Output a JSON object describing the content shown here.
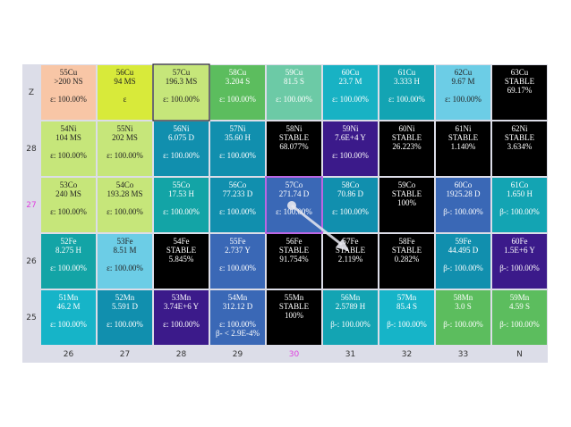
{
  "row_labels": [
    "Z",
    "28",
    "27",
    "26",
    "25"
  ],
  "column_labels": [
    "26",
    "27",
    "28",
    "29",
    "30",
    "31",
    "32",
    "33",
    "N"
  ],
  "rows": [
    [
      {
        "name": "55Cu",
        "half_life": ">200 NS",
        "decay": [
          "ε: 100.00%"
        ],
        "color": "#f8c6a6"
      },
      {
        "name": "56Cu",
        "half_life": "94 MS",
        "decay": [
          "ε"
        ],
        "color": "#d8ea3a"
      },
      {
        "name": "57Cu",
        "half_life": "196.3 MS",
        "decay": [
          "ε: 100.00%"
        ],
        "color": "#c6e67a"
      },
      {
        "name": "58Cu",
        "half_life": "3.204 S",
        "decay": [
          "ε: 100.00%"
        ],
        "color": "#5cbd5e"
      },
      {
        "name": "59Cu",
        "half_life": "81.5 S",
        "decay": [
          "ε: 100.00%"
        ],
        "color": "#6ccaa6"
      },
      {
        "name": "60Cu",
        "half_life": "23.7 M",
        "decay": [
          "ε: 100.00%"
        ],
        "color": "#18b2c4"
      },
      {
        "name": "61Cu",
        "half_life": "3.333 H",
        "decay": [
          "ε: 100.00%"
        ],
        "color": "#13a4b3"
      },
      {
        "name": "62Cu",
        "half_life": "9.67 M",
        "decay": [
          "ε: 100.00%"
        ],
        "color": "#6ccde6"
      },
      {
        "name": "63Cu",
        "half_life": "STABLE",
        "abundance": "69.17%",
        "color": "#000000"
      }
    ],
    [
      {
        "name": "54Ni",
        "half_life": "104 MS",
        "decay": [
          "ε: 100.00%"
        ],
        "color": "#c6e67a"
      },
      {
        "name": "55Ni",
        "half_life": "202 MS",
        "decay": [
          "ε: 100.00%"
        ],
        "color": "#c6e67a"
      },
      {
        "name": "56Ni",
        "half_life": "6.075 D",
        "decay": [
          "ε: 100.00%"
        ],
        "color": "#118fae"
      },
      {
        "name": "57Ni",
        "half_life": "35.60 H",
        "decay": [
          "ε: 100.00%"
        ],
        "color": "#118fae"
      },
      {
        "name": "58Ni",
        "half_life": "STABLE",
        "abundance": "68.077%",
        "color": "#000000"
      },
      {
        "name": "59Ni",
        "half_life": "7.6E+4 Y",
        "decay": [
          "ε: 100.00%"
        ],
        "color": "#3b1a8a"
      },
      {
        "name": "60Ni",
        "half_life": "STABLE",
        "abundance": "26.223%",
        "color": "#000000"
      },
      {
        "name": "61Ni",
        "half_life": "STABLE",
        "abundance": "1.140%",
        "color": "#000000"
      },
      {
        "name": "62Ni",
        "half_life": "STABLE",
        "abundance": "3.634%",
        "color": "#000000"
      }
    ],
    [
      {
        "name": "53Co",
        "half_life": "240 MS",
        "decay": [
          "ε: 100.00%"
        ],
        "color": "#c6e67a"
      },
      {
        "name": "54Co",
        "half_life": "193.28 MS",
        "decay": [
          "ε: 100.00%"
        ],
        "color": "#c6e67a"
      },
      {
        "name": "55Co",
        "half_life": "17.53 H",
        "decay": [
          "ε: 100.00%"
        ],
        "color": "#13a4a6"
      },
      {
        "name": "56Co",
        "half_life": "77.233 D",
        "decay": [
          "ε: 100.00%"
        ],
        "color": "#118fae"
      },
      {
        "name": "57Co",
        "half_life": "271.74 D",
        "decay": [
          "ε: 100.00%"
        ],
        "color": "#3a68b6"
      },
      {
        "name": "58Co",
        "half_life": "70.86 D",
        "decay": [
          "ε: 100.00%"
        ],
        "color": "#118fae"
      },
      {
        "name": "59Co",
        "half_life": "STABLE",
        "abundance": "100%",
        "color": "#000000"
      },
      {
        "name": "60Co",
        "half_life": "1925.28 D",
        "decay": [
          "β-: 100.00%"
        ],
        "color": "#3a68b6"
      },
      {
        "name": "61Co",
        "half_life": "1.650 H",
        "decay": [
          "β-: 100.00%"
        ],
        "color": "#13a4b3"
      }
    ],
    [
      {
        "name": "52Fe",
        "half_life": "8.275 H",
        "decay": [
          "ε: 100.00%"
        ],
        "color": "#13a4a6"
      },
      {
        "name": "53Fe",
        "half_life": "8.51 M",
        "decay": [
          "ε: 100.00%"
        ],
        "color": "#6ccde6"
      },
      {
        "name": "54Fe",
        "half_life": "STABLE",
        "abundance": "5.845%",
        "color": "#000000"
      },
      {
        "name": "55Fe",
        "half_life": "2.737 Y",
        "decay": [
          "ε: 100.00%"
        ],
        "color": "#3a68b6"
      },
      {
        "name": "56Fe",
        "half_life": "STABLE",
        "abundance": "91.754%",
        "color": "#000000"
      },
      {
        "name": "57Fe",
        "half_life": "STABLE",
        "abundance": "2.119%",
        "color": "#000000"
      },
      {
        "name": "58Fe",
        "half_life": "STABLE",
        "abundance": "0.282%",
        "color": "#000000"
      },
      {
        "name": "59Fe",
        "half_life": "44.495 D",
        "decay": [
          "β-: 100.00%"
        ],
        "color": "#118fae"
      },
      {
        "name": "60Fe",
        "half_life": "1.5E+6 Y",
        "decay": [
          "β-: 100.00%"
        ],
        "color": "#3b1a8a"
      }
    ],
    [
      {
        "name": "51Mn",
        "half_life": "46.2 M",
        "decay": [
          "ε: 100.00%"
        ],
        "color": "#16b4c8"
      },
      {
        "name": "52Mn",
        "half_life": "5.591 D",
        "decay": [
          "ε: 100.00%"
        ],
        "color": "#118fae"
      },
      {
        "name": "53Mn",
        "half_life": "3.74E+6 Y",
        "decay": [
          "ε: 100.00%"
        ],
        "color": "#3b1a8a"
      },
      {
        "name": "54Mn",
        "half_life": "312.12 D",
        "decay": [
          "ε: 100.00%",
          "β- < 2.9E-4%"
        ],
        "color": "#3a68b6"
      },
      {
        "name": "55Mn",
        "half_life": "STABLE",
        "abundance": "100%",
        "color": "#000000"
      },
      {
        "name": "56Mn",
        "half_life": "2.5789 H",
        "decay": [
          "β-: 100.00%"
        ],
        "color": "#13a4b3"
      },
      {
        "name": "57Mn",
        "half_life": "85.4 S",
        "decay": [
          "β-: 100.00%"
        ],
        "color": "#16b4c8"
      },
      {
        "name": "58Mn",
        "half_life": "3.0 S",
        "decay": [
          "β-: 100.00%"
        ],
        "color": "#5cbd5e"
      },
      {
        "name": "59Mn",
        "half_life": "4.59 S",
        "decay": [
          "β-: 100.00%"
        ],
        "color": "#5cbd5e"
      }
    ]
  ]
}
